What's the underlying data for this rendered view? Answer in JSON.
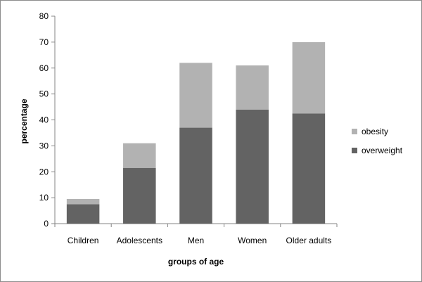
{
  "chart_data": {
    "type": "bar",
    "stacked": true,
    "categories": [
      "Children",
      "Adolescents",
      "Men",
      "Women",
      "Older adults"
    ],
    "series": [
      {
        "name": "overweight",
        "values": [
          7.5,
          21.5,
          37,
          44,
          42.5
        ],
        "color": "#636363"
      },
      {
        "name": "obesity",
        "values": [
          2,
          9.5,
          25,
          17,
          27.5
        ],
        "color": "#b2b2b2"
      }
    ],
    "xlabel": "groups of age",
    "ylabel": "percentage",
    "ylim": [
      0,
      80
    ],
    "yticks": [
      0,
      10,
      20,
      30,
      40,
      50,
      60,
      70,
      80
    ],
    "grid": false,
    "legend_position": "right"
  }
}
